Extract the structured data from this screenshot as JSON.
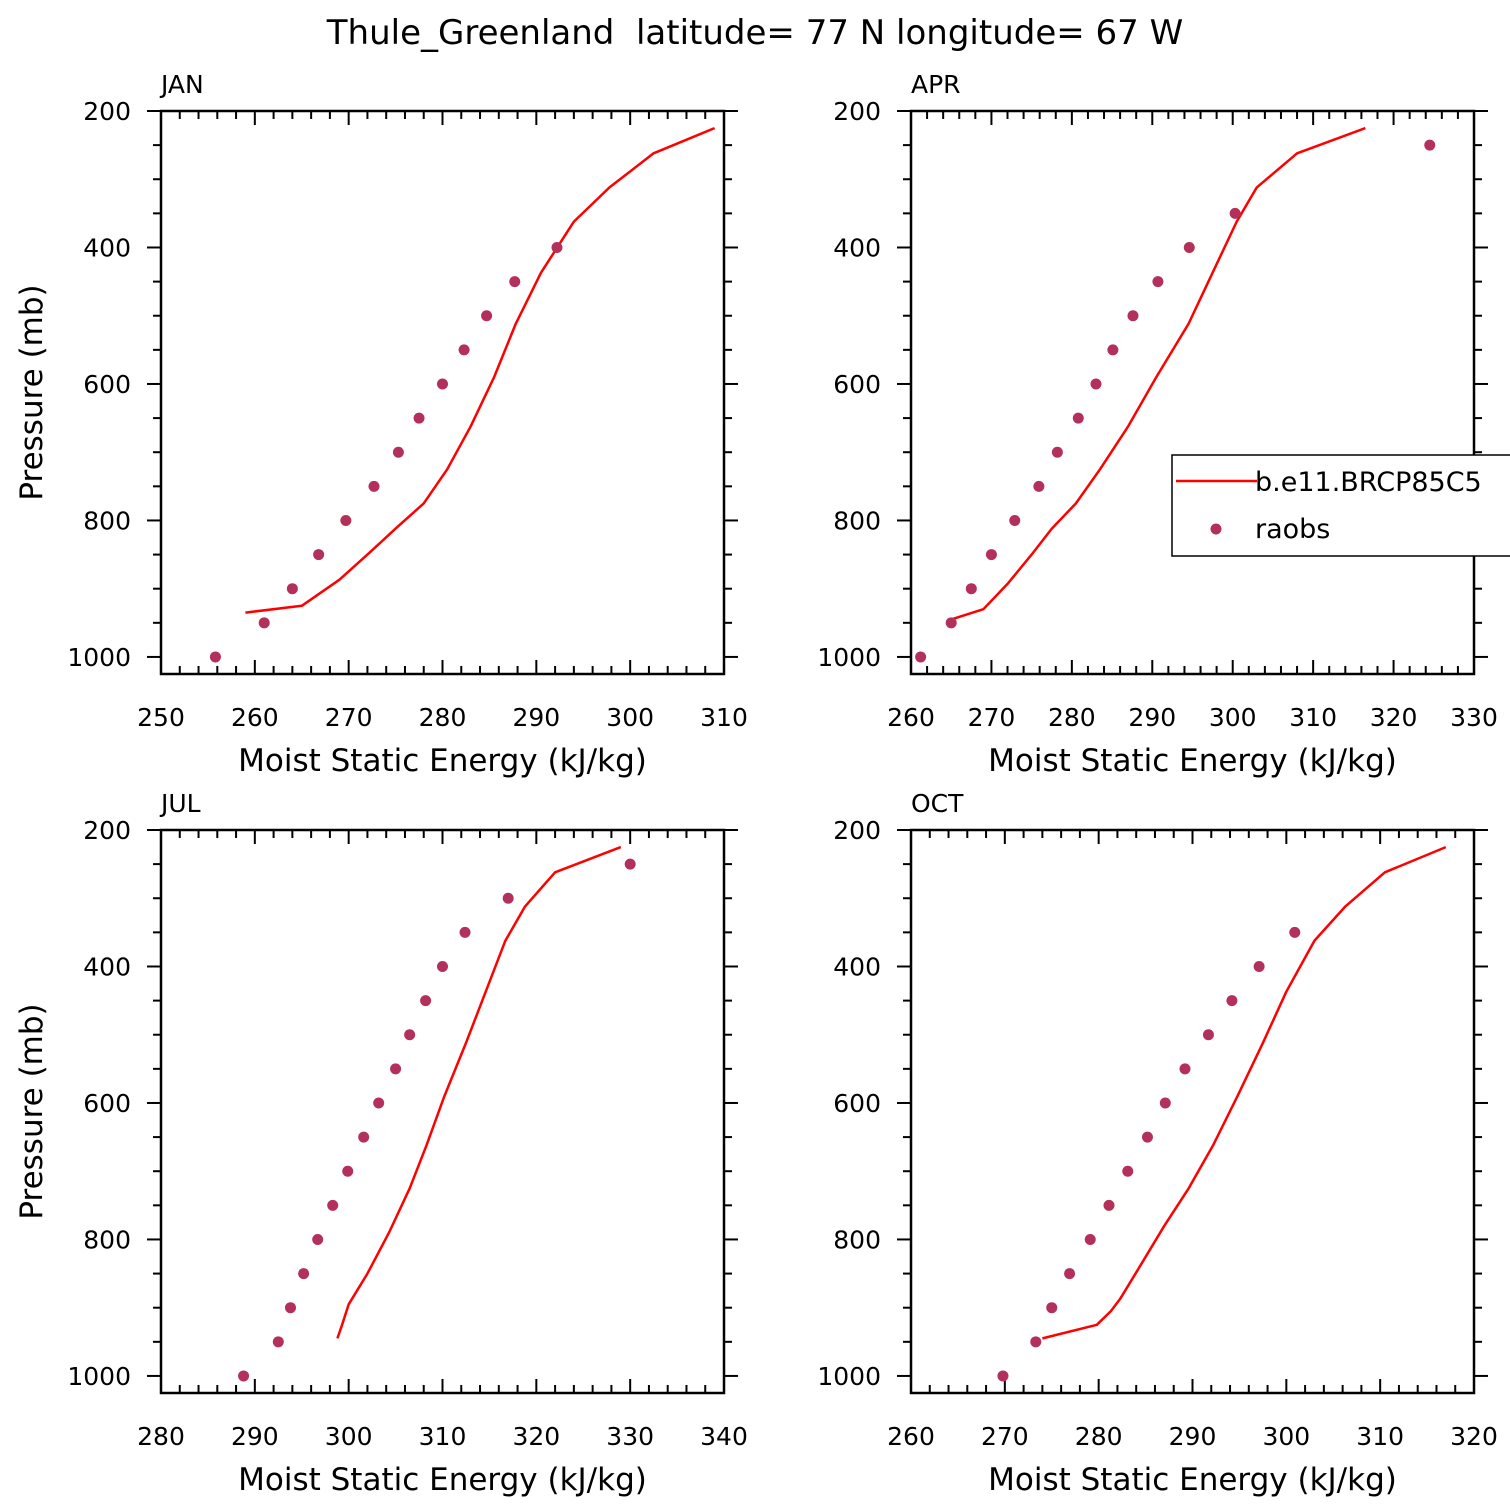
{
  "figure_title": "Thule_Greenland  latitude= 77 N longitude= 67 W",
  "colors": {
    "model_line": "#ff0000",
    "obs_marker": "#b3305a",
    "axis": "#000000"
  },
  "legend": {
    "model_label": "b.e11.BRCP85C5",
    "obs_label": "raobs",
    "panel": "APR",
    "placement": "middle-right of APR panel"
  },
  "chart_data": [
    {
      "type": "line",
      "panel_label": "JAN",
      "xlabel": "Moist Static Energy (kJ/kg)",
      "ylabel": "Pressure (mb)",
      "xlim": [
        250,
        310
      ],
      "ylim": [
        1025,
        200
      ],
      "xticks": [
        250,
        260,
        270,
        280,
        290,
        300,
        310
      ],
      "yticks": [
        200,
        400,
        600,
        800,
        1000
      ],
      "series": [
        {
          "name": "b.e11.BRCP85C5",
          "kind": "line",
          "x": [
            259.0,
            265.0,
            269.0,
            272.0,
            275.0,
            278.0,
            280.5,
            283.0,
            285.5,
            287.8,
            290.5,
            294.0,
            297.8,
            302.5,
            309.0
          ],
          "y": [
            935,
            925,
            887,
            850,
            812,
            775,
            725,
            662,
            590,
            512,
            437,
            362,
            312,
            262,
            225
          ]
        },
        {
          "name": "raobs",
          "kind": "scatter",
          "x": [
            255.8,
            261.0,
            264.0,
            266.8,
            269.7,
            272.7,
            275.3,
            277.5,
            280.0,
            282.3,
            284.7,
            287.7,
            292.2
          ],
          "y": [
            1000,
            950,
            900,
            850,
            800,
            750,
            700,
            650,
            600,
            550,
            500,
            450,
            400
          ]
        }
      ]
    },
    {
      "type": "line",
      "panel_label": "APR",
      "xlabel": "Moist Static Energy (kJ/kg)",
      "ylabel": "",
      "xlim": [
        260,
        330
      ],
      "ylim": [
        1025,
        200
      ],
      "xticks": [
        260,
        270,
        280,
        290,
        300,
        310,
        320,
        330
      ],
      "yticks": [
        200,
        400,
        600,
        800,
        1000
      ],
      "series": [
        {
          "name": "b.e11.BRCP85C5",
          "kind": "line",
          "x": [
            265.0,
            269.0,
            272.0,
            275.0,
            277.5,
            280.5,
            283.5,
            287.0,
            290.5,
            294.5,
            297.5,
            300.5,
            303.0,
            308.0,
            316.5
          ],
          "y": [
            945,
            930,
            893,
            850,
            812,
            775,
            725,
            662,
            590,
            512,
            437,
            362,
            312,
            262,
            225
          ]
        },
        {
          "name": "raobs",
          "kind": "scatter",
          "x": [
            261.2,
            265.0,
            267.5,
            270.0,
            272.9,
            275.9,
            278.2,
            280.8,
            283.0,
            285.1,
            287.6,
            290.7,
            294.6,
            300.3,
            324.5
          ],
          "y": [
            1000,
            950,
            900,
            850,
            800,
            750,
            700,
            650,
            600,
            550,
            500,
            450,
            400,
            350,
            250
          ]
        }
      ]
    },
    {
      "type": "line",
      "panel_label": "JUL",
      "xlabel": "Moist Static Energy (kJ/kg)",
      "ylabel": "Pressure (mb)",
      "xlim": [
        280,
        340
      ],
      "ylim": [
        1025,
        200
      ],
      "xticks": [
        280,
        290,
        300,
        310,
        320,
        330,
        340
      ],
      "yticks": [
        200,
        400,
        600,
        800,
        1000
      ],
      "series": [
        {
          "name": "b.e11.BRCP85C5",
          "kind": "line",
          "x": [
            298.8,
            299.3,
            300.0,
            302.0,
            304.3,
            306.5,
            308.3,
            310.2,
            312.5,
            314.6,
            316.7,
            318.8,
            322.0,
            329.0
          ],
          "y": [
            945,
            925,
            895,
            850,
            790,
            725,
            662,
            590,
            512,
            437,
            362,
            312,
            262,
            225
          ]
        },
        {
          "name": "raobs",
          "kind": "scatter",
          "x": [
            288.8,
            292.5,
            293.8,
            295.2,
            296.7,
            298.3,
            299.9,
            301.6,
            303.2,
            305.0,
            306.5,
            308.2,
            310.0,
            312.4,
            317.0,
            330.0
          ],
          "y": [
            1000,
            950,
            900,
            850,
            800,
            750,
            700,
            650,
            600,
            550,
            500,
            450,
            400,
            350,
            300,
            250
          ]
        }
      ]
    },
    {
      "type": "line",
      "panel_label": "OCT",
      "xlabel": "Moist Static Energy (kJ/kg)",
      "ylabel": "",
      "xlim": [
        260,
        320
      ],
      "ylim": [
        1025,
        200
      ],
      "xticks": [
        260,
        270,
        280,
        290,
        300,
        310,
        320
      ],
      "yticks": [
        200,
        400,
        600,
        800,
        1000
      ],
      "series": [
        {
          "name": "b.e11.BRCP85C5",
          "kind": "line",
          "x": [
            274.0,
            279.8,
            281.3,
            282.3,
            284.5,
            287.0,
            289.6,
            292.2,
            294.8,
            297.5,
            300.0,
            303.0,
            306.3,
            310.5,
            317.0
          ],
          "y": [
            945,
            925,
            905,
            887,
            837,
            780,
            725,
            662,
            590,
            512,
            437,
            362,
            312,
            262,
            225
          ]
        },
        {
          "name": "raobs",
          "kind": "scatter",
          "x": [
            269.8,
            273.3,
            275.0,
            276.9,
            279.1,
            281.1,
            283.1,
            285.2,
            287.1,
            289.2,
            291.7,
            294.2,
            297.1,
            300.9
          ],
          "y": [
            1000,
            950,
            900,
            850,
            800,
            750,
            700,
            650,
            600,
            550,
            500,
            450,
            400,
            350
          ]
        }
      ]
    }
  ]
}
